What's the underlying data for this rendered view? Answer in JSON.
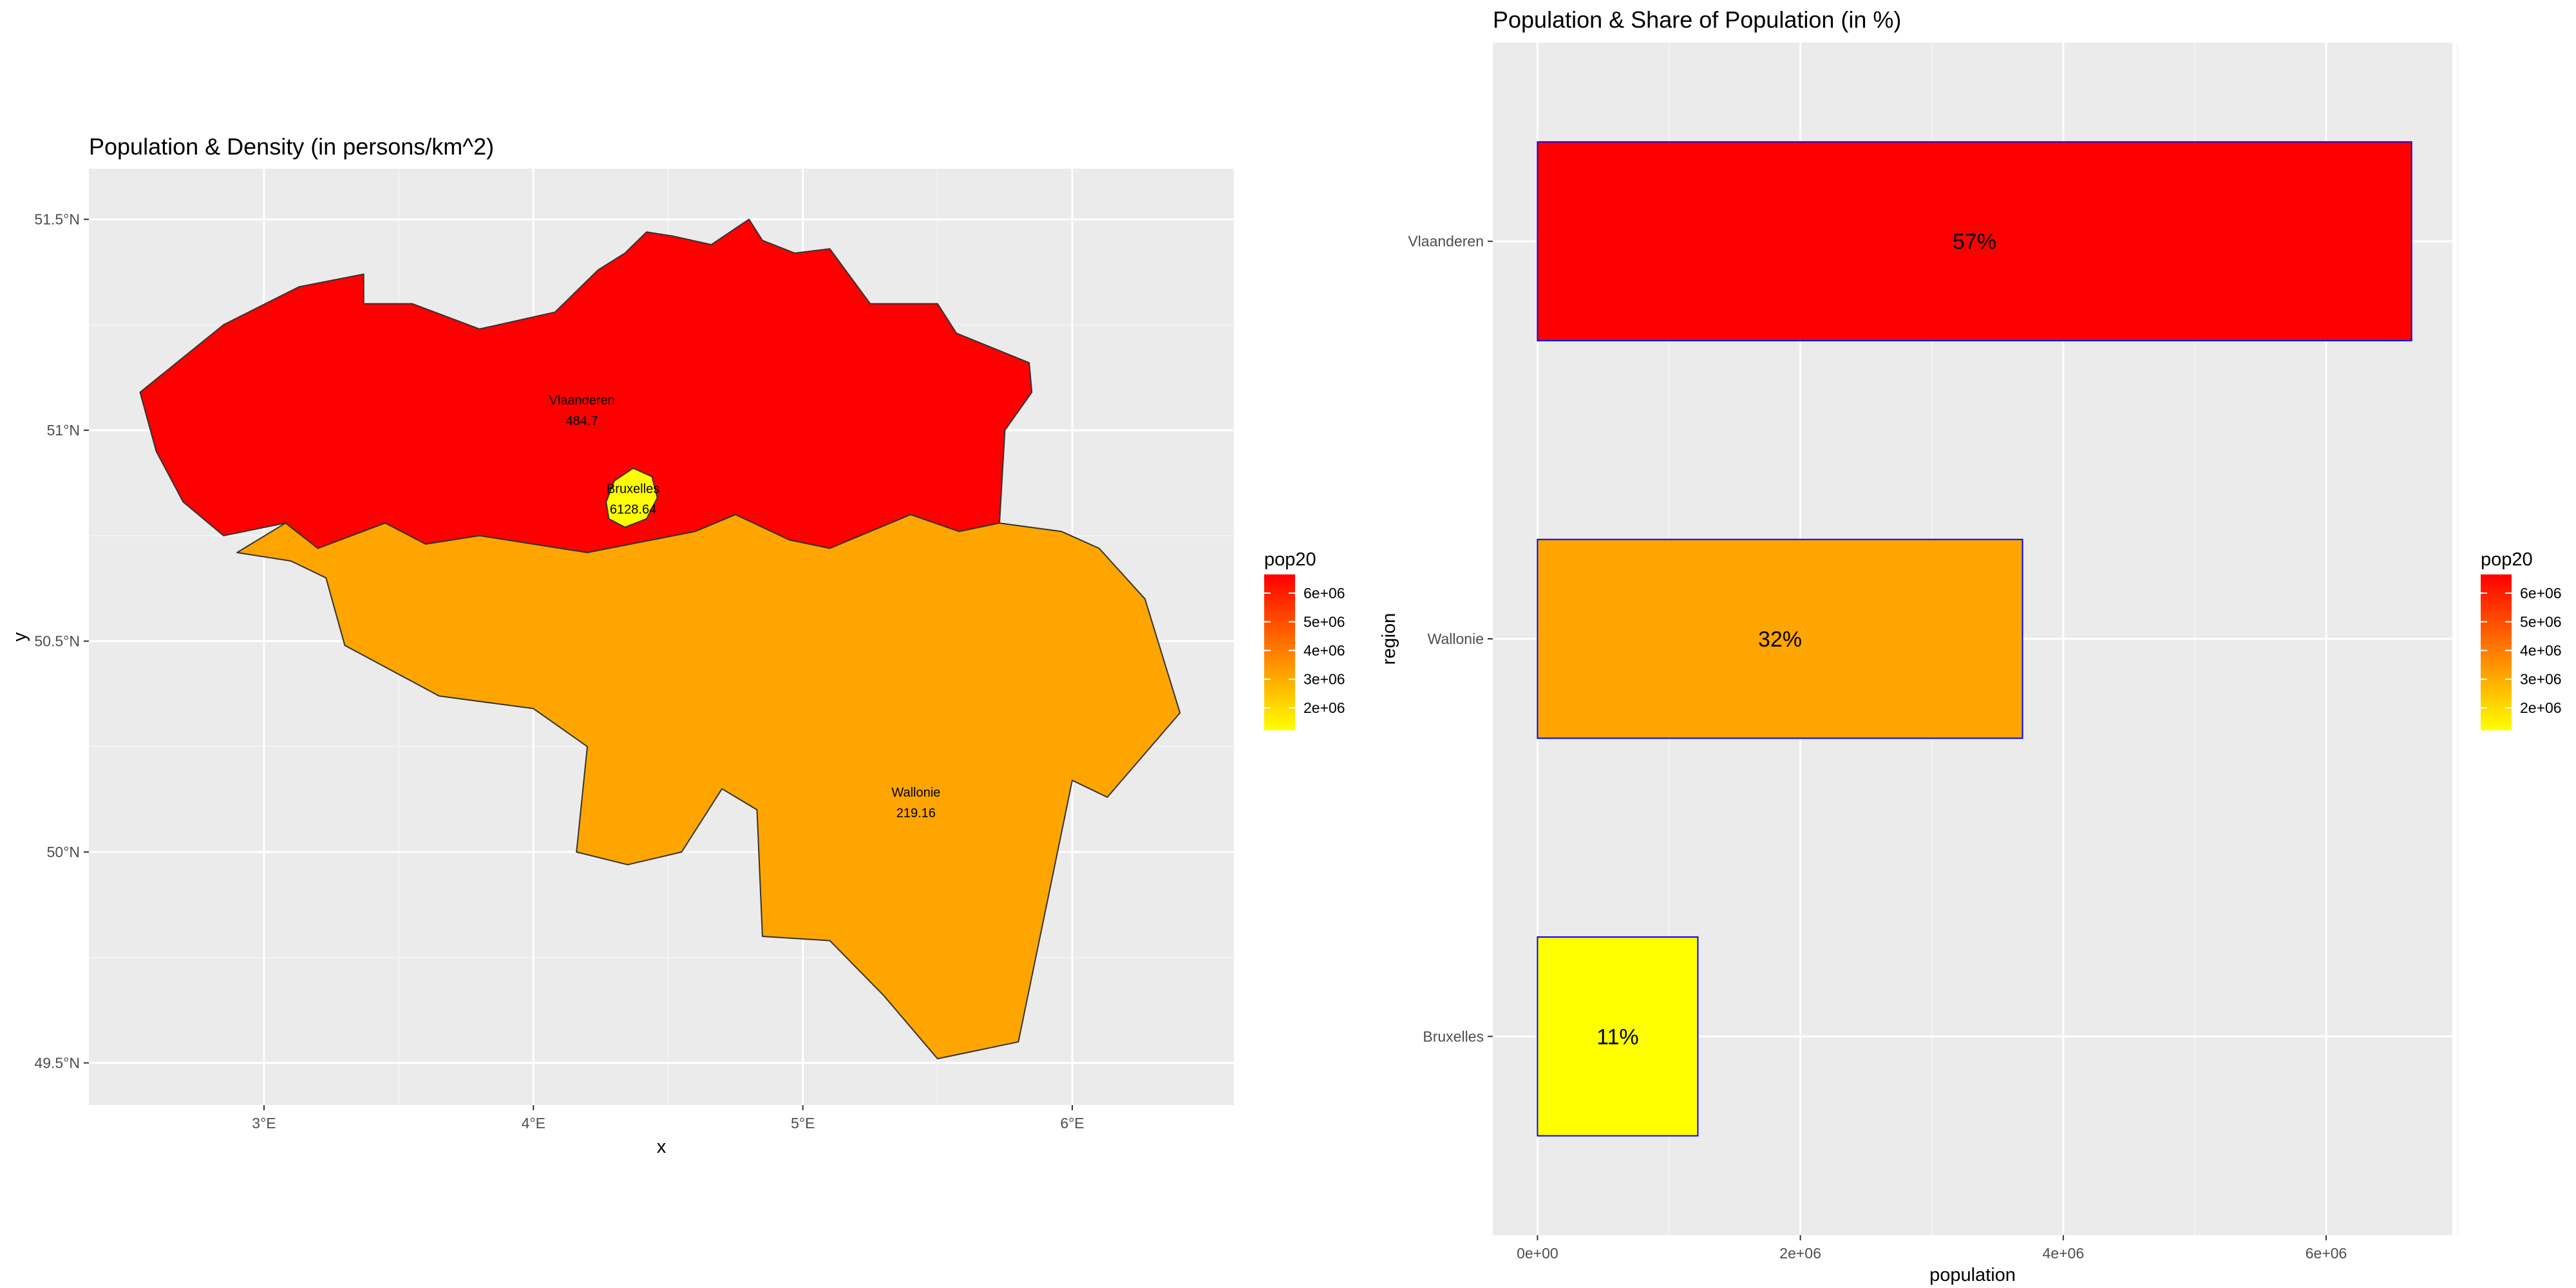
{
  "chart_data": [
    {
      "type": "map",
      "title": "Population & Density (in persons/km^2)",
      "xlabel": "x",
      "ylabel": "y",
      "xlim": [
        2.35,
        6.6
      ],
      "ylim": [
        49.4,
        51.62
      ],
      "x_ticks": [
        {
          "value": 3,
          "label": "3°E"
        },
        {
          "value": 4,
          "label": "4°E"
        },
        {
          "value": 5,
          "label": "5°E"
        },
        {
          "value": 6,
          "label": "6°E"
        }
      ],
      "y_ticks": [
        {
          "value": 49.5,
          "label": "49.5°N"
        },
        {
          "value": 50.0,
          "label": "50°N"
        },
        {
          "value": 50.5,
          "label": "50.5°N"
        },
        {
          "value": 51.0,
          "label": "51°N"
        },
        {
          "value": 51.5,
          "label": "51.5°N"
        }
      ],
      "regions": [
        {
          "name": "Vlaanderen",
          "density": "484.7",
          "color": "#ff0000",
          "label_lon": 4.18,
          "label_lat": 51.04,
          "outline": [
            [
              2.54,
              51.09
            ],
            [
              2.85,
              51.25
            ],
            [
              3.13,
              51.34
            ],
            [
              3.37,
              51.37
            ],
            [
              3.37,
              51.3
            ],
            [
              3.55,
              51.3
            ],
            [
              3.8,
              51.24
            ],
            [
              4.08,
              51.28
            ],
            [
              4.24,
              51.38
            ],
            [
              4.34,
              51.42
            ],
            [
              4.42,
              51.47
            ],
            [
              4.52,
              51.46
            ],
            [
              4.66,
              51.44
            ],
            [
              4.8,
              51.5
            ],
            [
              4.85,
              51.45
            ],
            [
              4.97,
              51.42
            ],
            [
              5.1,
              51.43
            ],
            [
              5.25,
              51.3
            ],
            [
              5.5,
              51.3
            ],
            [
              5.57,
              51.23
            ],
            [
              5.84,
              51.16
            ],
            [
              5.85,
              51.09
            ],
            [
              5.75,
              51.0
            ],
            [
              5.73,
              50.78
            ],
            [
              5.58,
              50.76
            ],
            [
              5.4,
              50.8
            ],
            [
              5.1,
              50.72
            ],
            [
              4.95,
              50.74
            ],
            [
              4.75,
              50.8
            ],
            [
              4.6,
              50.76
            ],
            [
              4.2,
              50.71
            ],
            [
              4.0,
              50.73
            ],
            [
              3.8,
              50.75
            ],
            [
              3.6,
              50.73
            ],
            [
              3.45,
              50.78
            ],
            [
              3.2,
              50.72
            ],
            [
              3.08,
              50.78
            ],
            [
              2.85,
              50.75
            ],
            [
              2.7,
              50.83
            ],
            [
              2.6,
              50.95
            ]
          ]
        },
        {
          "name": "Wallonie",
          "density": "219.16",
          "color": "#ffa500",
          "label_lon": 5.42,
          "label_lat": 50.11,
          "outline": [
            [
              2.9,
              50.71
            ],
            [
              3.08,
              50.78
            ],
            [
              3.2,
              50.72
            ],
            [
              3.45,
              50.78
            ],
            [
              3.6,
              50.73
            ],
            [
              3.8,
              50.75
            ],
            [
              4.0,
              50.73
            ],
            [
              4.2,
              50.71
            ],
            [
              4.6,
              50.76
            ],
            [
              4.75,
              50.8
            ],
            [
              4.95,
              50.74
            ],
            [
              5.1,
              50.72
            ],
            [
              5.4,
              50.8
            ],
            [
              5.58,
              50.76
            ],
            [
              5.73,
              50.78
            ],
            [
              5.96,
              50.76
            ],
            [
              6.1,
              50.72
            ],
            [
              6.27,
              50.6
            ],
            [
              6.4,
              50.33
            ],
            [
              6.13,
              50.13
            ],
            [
              6.0,
              50.17
            ],
            [
              5.9,
              49.86
            ],
            [
              5.8,
              49.55
            ],
            [
              5.5,
              49.51
            ],
            [
              5.3,
              49.66
            ],
            [
              5.1,
              49.79
            ],
            [
              4.85,
              49.8
            ],
            [
              4.83,
              50.1
            ],
            [
              4.7,
              50.15
            ],
            [
              4.55,
              50.0
            ],
            [
              4.35,
              49.97
            ],
            [
              4.16,
              50.0
            ],
            [
              4.2,
              50.25
            ],
            [
              4.0,
              50.34
            ],
            [
              3.65,
              50.37
            ],
            [
              3.3,
              50.49
            ],
            [
              3.23,
              50.65
            ],
            [
              3.1,
              50.69
            ]
          ]
        },
        {
          "name": "Bruxelles",
          "density": "6128.64",
          "color": "#ffff00",
          "label_lon": 4.37,
          "label_lat": 50.83,
          "outline": [
            [
              4.27,
              50.83
            ],
            [
              4.3,
              50.88
            ],
            [
              4.37,
              50.91
            ],
            [
              4.44,
              50.89
            ],
            [
              4.46,
              50.84
            ],
            [
              4.42,
              50.79
            ],
            [
              4.34,
              50.77
            ],
            [
              4.28,
              50.79
            ]
          ]
        }
      ],
      "legend": {
        "title": "pop20",
        "labels": [
          "6e+06",
          "5e+06",
          "4e+06",
          "3e+06",
          "2e+06"
        ],
        "values": [
          6000000,
          5000000,
          4000000,
          3000000,
          2000000
        ],
        "range": [
          1220000,
          6650000
        ],
        "colors": [
          "#ffff00",
          "#ff0000"
        ],
        "placement": "right"
      }
    },
    {
      "type": "bar",
      "orientation": "horizontal",
      "title": "Population & Share of Population (in %)",
      "xlabel": "population",
      "ylabel": "region",
      "categories": [
        "Vlaanderen",
        "Wallonie",
        "Bruxelles"
      ],
      "values": [
        6650000,
        3690000,
        1220000
      ],
      "bar_labels": [
        "57%",
        "32%",
        "11%"
      ],
      "colors": [
        "#ff0000",
        "#ffa500",
        "#ffff00"
      ],
      "bar_outline": "#0000ff",
      "xlim": [
        -340000,
        6960000
      ],
      "x_ticks": [
        {
          "value": 0,
          "label": "0e+00"
        },
        {
          "value": 2000000,
          "label": "2e+06"
        },
        {
          "value": 4000000,
          "label": "4e+06"
        },
        {
          "value": 6000000,
          "label": "6e+06"
        }
      ],
      "legend": {
        "title": "pop20",
        "labels": [
          "6e+06",
          "5e+06",
          "4e+06",
          "3e+06",
          "2e+06"
        ],
        "values": [
          6000000,
          5000000,
          4000000,
          3000000,
          2000000
        ],
        "range": [
          1220000,
          6650000
        ],
        "colors": [
          "#ffff00",
          "#ff0000"
        ],
        "placement": "right"
      }
    }
  ]
}
